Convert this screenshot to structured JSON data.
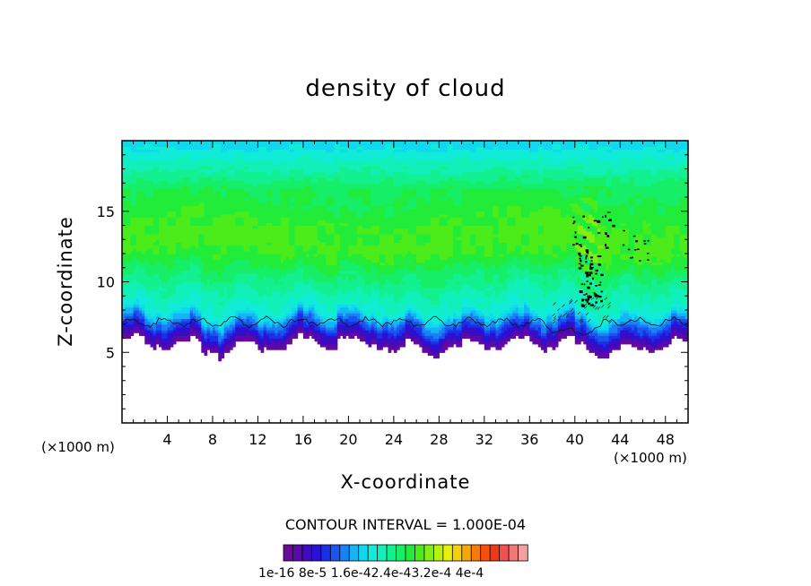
{
  "chart_data": {
    "type": "heatmap",
    "title": "density of cloud",
    "xlabel": "X-coordinate",
    "ylabel": "Z-coordinate",
    "x_unit": "(×1000 m)",
    "xlim": [
      0,
      50
    ],
    "ylim": [
      0,
      20
    ],
    "x_ticks": [
      "4",
      "8",
      "12",
      "16",
      "20",
      "24",
      "28",
      "32",
      "36",
      "40",
      "44",
      "48"
    ],
    "y_ticks": [
      "5",
      "10",
      "15"
    ],
    "contour_interval_label": "CONTOUR INTERVAL = 1.000E-04",
    "colorbar_labels": "1e-16 8e-5 1.6e-42.4e-43.2e-4 4e-4",
    "colorbar_range": [
      1e-16,
      0.0004
    ],
    "cloud_base_z": 5.5,
    "cloud_layer_z": [
      5.5,
      20
    ],
    "max_density_band_z": [
      10.5,
      16
    ],
    "convective_feature_x": [
      38,
      47
    ],
    "colors": [
      "#6a0a9a",
      "#5a0aa8",
      "#3f0bbd",
      "#2a10d4",
      "#1a2fe6",
      "#1a55f0",
      "#1a80f5",
      "#15b5f5",
      "#10d8ee",
      "#10ecd8",
      "#10f0b8",
      "#12f090",
      "#16ee68",
      "#22ec3a",
      "#4cec1a",
      "#84ee14",
      "#b8f010",
      "#e6f00c",
      "#f5d00a",
      "#f5a808",
      "#f57c08",
      "#f55010",
      "#f03818",
      "#f05050",
      "#f07878",
      "#f5a0a0"
    ]
  }
}
